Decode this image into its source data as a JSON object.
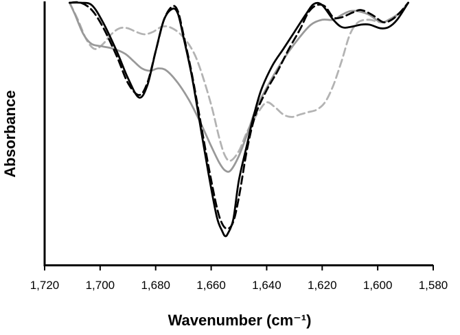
{
  "chart_data": {
    "type": "line",
    "xlabel": "Wavenumber (cm⁻¹)",
    "ylabel": "Absorbance",
    "xlim": [
      1720,
      1580
    ],
    "x_reversed": true,
    "ylim": [
      0,
      1
    ],
    "y_ticks_shown": false,
    "grid": false,
    "legend": "none",
    "x_ticks": [
      1720,
      1700,
      1680,
      1660,
      1640,
      1620,
      1600,
      1580
    ],
    "x_tick_labels": [
      "1,720",
      "1,700",
      "1,680",
      "1,660",
      "1,640",
      "1,620",
      "1,600",
      "1,580"
    ],
    "series": [
      {
        "color": "#000000",
        "dashed": false,
        "points": [
          [
            1711,
            1.0
          ],
          [
            1707,
            1.0
          ],
          [
            1703,
            0.99
          ],
          [
            1699,
            0.92
          ],
          [
            1694,
            0.8
          ],
          [
            1690,
            0.69
          ],
          [
            1686,
            0.61
          ],
          [
            1683,
            0.66
          ],
          [
            1680,
            0.8
          ],
          [
            1677,
            0.93
          ],
          [
            1674,
            0.975
          ],
          [
            1672,
            0.955
          ],
          [
            1670,
            0.86
          ],
          [
            1667,
            0.7
          ],
          [
            1664,
            0.5
          ],
          [
            1661,
            0.3
          ],
          [
            1658,
            0.12
          ],
          [
            1656,
            0.06
          ],
          [
            1655,
            0.04
          ],
          [
            1654,
            0.05
          ],
          [
            1652,
            0.11
          ],
          [
            1650,
            0.27
          ],
          [
            1647,
            0.42
          ],
          [
            1645,
            0.52
          ],
          [
            1642,
            0.64
          ],
          [
            1638,
            0.74
          ],
          [
            1634,
            0.81
          ],
          [
            1630,
            0.88
          ],
          [
            1626,
            0.95
          ],
          [
            1623,
            0.995
          ],
          [
            1620,
            0.99
          ],
          [
            1616,
            0.93
          ],
          [
            1613,
            0.9
          ],
          [
            1610,
            0.9
          ],
          [
            1606,
            0.91
          ],
          [
            1603,
            0.91
          ],
          [
            1599,
            0.895
          ],
          [
            1596,
            0.9
          ],
          [
            1593,
            0.93
          ],
          [
            1589,
            1.0
          ]
        ]
      },
      {
        "color": "#000000",
        "dashed": true,
        "points": [
          [
            1711,
            1.0
          ],
          [
            1707,
            1.0
          ],
          [
            1703,
            0.97
          ],
          [
            1699,
            0.9
          ],
          [
            1694,
            0.78
          ],
          [
            1690,
            0.67
          ],
          [
            1686,
            0.62
          ],
          [
            1683,
            0.67
          ],
          [
            1680,
            0.8
          ],
          [
            1677,
            0.93
          ],
          [
            1674,
            0.985
          ],
          [
            1672,
            0.965
          ],
          [
            1670,
            0.87
          ],
          [
            1667,
            0.71
          ],
          [
            1664,
            0.52
          ],
          [
            1661,
            0.33
          ],
          [
            1658,
            0.16
          ],
          [
            1656,
            0.09
          ],
          [
            1654,
            0.07
          ],
          [
            1652,
            0.1
          ],
          [
            1650,
            0.2
          ],
          [
            1647,
            0.4
          ],
          [
            1644,
            0.54
          ],
          [
            1640,
            0.64
          ],
          [
            1636,
            0.72
          ],
          [
            1632,
            0.81
          ],
          [
            1628,
            0.89
          ],
          [
            1625,
            0.96
          ],
          [
            1622,
            0.99
          ],
          [
            1619,
            0.985
          ],
          [
            1616,
            0.94
          ],
          [
            1613,
            0.94
          ],
          [
            1609,
            0.96
          ],
          [
            1606,
            0.97
          ],
          [
            1602,
            0.95
          ],
          [
            1598,
            0.92
          ],
          [
            1595,
            0.93
          ],
          [
            1592,
            0.96
          ],
          [
            1589,
            1.0
          ]
        ]
      },
      {
        "color": "#999999",
        "dashed": false,
        "points": [
          [
            1711,
            1.0
          ],
          [
            1709,
            0.95
          ],
          [
            1706,
            0.87
          ],
          [
            1703,
            0.83
          ],
          [
            1699,
            0.82
          ],
          [
            1695,
            0.81
          ],
          [
            1691,
            0.79
          ],
          [
            1688,
            0.76
          ],
          [
            1685,
            0.73
          ],
          [
            1682,
            0.72
          ],
          [
            1679,
            0.73
          ],
          [
            1676,
            0.72
          ],
          [
            1672,
            0.67
          ],
          [
            1668,
            0.6
          ],
          [
            1664,
            0.51
          ],
          [
            1660,
            0.41
          ],
          [
            1657,
            0.34
          ],
          [
            1655,
            0.31
          ],
          [
            1653,
            0.31
          ],
          [
            1650,
            0.37
          ],
          [
            1647,
            0.46
          ],
          [
            1644,
            0.56
          ],
          [
            1640,
            0.65
          ],
          [
            1636,
            0.73
          ],
          [
            1632,
            0.8
          ],
          [
            1628,
            0.86
          ],
          [
            1624,
            0.91
          ],
          [
            1620,
            0.93
          ],
          [
            1616,
            0.93
          ],
          [
            1613,
            0.95
          ],
          [
            1610,
            0.965
          ],
          [
            1607,
            0.965
          ],
          [
            1603,
            0.95
          ],
          [
            1599,
            0.92
          ],
          [
            1596,
            0.93
          ],
          [
            1592,
            0.96
          ],
          [
            1589,
            1.0
          ]
        ]
      },
      {
        "color": "#b3b3b3",
        "dashed": true,
        "points": [
          [
            1711,
            1.0
          ],
          [
            1708,
            0.93
          ],
          [
            1705,
            0.85
          ],
          [
            1702,
            0.81
          ],
          [
            1699,
            0.83
          ],
          [
            1696,
            0.87
          ],
          [
            1693,
            0.895
          ],
          [
            1690,
            0.895
          ],
          [
            1687,
            0.88
          ],
          [
            1684,
            0.87
          ],
          [
            1681,
            0.88
          ],
          [
            1678,
            0.9
          ],
          [
            1675,
            0.9
          ],
          [
            1671,
            0.87
          ],
          [
            1667,
            0.81
          ],
          [
            1664,
            0.73
          ],
          [
            1660,
            0.58
          ],
          [
            1657,
            0.44
          ],
          [
            1655,
            0.37
          ],
          [
            1653,
            0.35
          ],
          [
            1650,
            0.39
          ],
          [
            1647,
            0.47
          ],
          [
            1643,
            0.55
          ],
          [
            1640,
            0.59
          ],
          [
            1637,
            0.57
          ],
          [
            1634,
            0.54
          ],
          [
            1631,
            0.53
          ],
          [
            1628,
            0.54
          ],
          [
            1625,
            0.55
          ],
          [
            1622,
            0.56
          ],
          [
            1619,
            0.59
          ],
          [
            1616,
            0.66
          ],
          [
            1613,
            0.76
          ],
          [
            1610,
            0.87
          ],
          [
            1607,
            0.92
          ],
          [
            1603,
            0.93
          ],
          [
            1599,
            0.92
          ],
          [
            1595,
            0.93
          ],
          [
            1592,
            0.96
          ],
          [
            1589,
            1.0
          ]
        ]
      }
    ]
  }
}
